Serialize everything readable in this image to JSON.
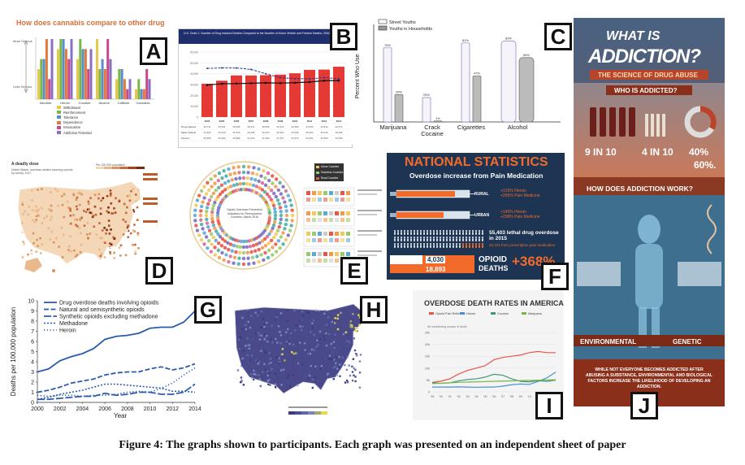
{
  "caption": "Figure 4: The graphs shown to participants. Each graph was presented on an independent sheet of paper",
  "panels": {
    "A": {
      "letter": "A",
      "title": "How does cannabis compare to other drugs?",
      "y_top": "More Serious",
      "y_bottom": "Less Serious",
      "categories": [
        "Nicotine",
        "Heroin",
        "Cocaine",
        "Alcohol",
        "Caffeine",
        "Cannabis"
      ],
      "legend": [
        "Withdrawal",
        "Reinforcement",
        "Tolerance",
        "Dependence",
        "Intoxication",
        "Addiction Potential"
      ],
      "colors": [
        "#e8c84a",
        "#7ab648",
        "#5b8ec9",
        "#e07b39",
        "#c94a8a",
        "#8a6fc4"
      ]
    },
    "B": {
      "letter": "B",
      "header": "U.S. Chart 1. Number of Drug Induced Deaths Compared to the Number of Motor Vehicle and Firearm Deaths, 2004 - 2013",
      "years": [
        "2004",
        "2005",
        "2006",
        "2007",
        "2008",
        "2009",
        "2010",
        "2011",
        "2012",
        "2013"
      ],
      "legend": [
        "Drug Induced",
        "Motor Vehicle",
        "Firearm"
      ],
      "colors": {
        "drug": "#e53935",
        "motor": "#1e3a8a",
        "firearm": "#111111"
      }
    },
    "C": {
      "letter": "C",
      "legend": [
        "Street Youths",
        "Youths in Households"
      ],
      "ylabel": "Percent Who Use",
      "categories": [
        "Marijuana",
        "Crack\nCocaine",
        "Cigarettes",
        "Alcohol"
      ]
    },
    "D": {
      "letter": "D",
      "title": "A deadly dose",
      "subtitle": "United States, overdose deaths involving opioids by county, 2017",
      "legend_title": "Per 100,000 population"
    },
    "E": {
      "letter": "E",
      "center_text": "Opioid Overdose Prevention Indicators for Pennsylvania Counties, March 2016",
      "legend": [
        "Urban Counties",
        "Suburban Counties",
        "Rural Counties"
      ]
    },
    "F": {
      "letter": "F",
      "title": "NATIONAL STATISTICS",
      "subtitle": "Overdose increase from Pain Medication",
      "rural_label": "RURAL",
      "rural_stats": "+315% Heroin\n+265% Pain Medicine",
      "urban_label": "URBAN",
      "urban_stats": "+145% Heroin\n+208% Pain Medicine",
      "lethal": "55,403 lethal drug overdose in 2015",
      "lethal_sub": "20,101 from prescription pain medication",
      "num1": "4,030",
      "num2": "18,893",
      "opioid": "OPIOID",
      "deaths": "DEATHS",
      "pct": "+368%"
    },
    "G": {
      "letter": "G",
      "ylabel": "Deaths per 100,000 population",
      "xlabel": "Year",
      "xticks": [
        "2000",
        "2002",
        "2004",
        "2006",
        "2008",
        "2010",
        "2012",
        "2014"
      ],
      "yticks": [
        "0",
        "1",
        "2",
        "3",
        "4",
        "5",
        "6",
        "7",
        "8",
        "9",
        "10"
      ],
      "legend": [
        "Drug overdose deaths involving opioids",
        "Natural and semisynthetic opioids",
        "Synthetic opioids excluding methadone",
        "Methadone",
        "Heroin"
      ]
    },
    "H": {
      "letter": "H"
    },
    "I": {
      "letter": "I",
      "title": "OVERDOSE DEATH RATES IN AMERICA",
      "legend": [
        "Opioid Pain Relievers",
        "Heroin",
        "Cocaine",
        "Marijuana"
      ],
      "colors": [
        "#e8564a",
        "#4a8fd8",
        "#3a9a7a",
        "#7ab648"
      ],
      "axis_note": "All contributing causes of death",
      "yticks": [
        "25k",
        "20k",
        "15k",
        "10k",
        "5k",
        "0"
      ],
      "xticks": [
        "'99",
        "'00",
        "'01",
        "'02",
        "'03",
        "'04",
        "'05",
        "'06",
        "'07",
        "'08",
        "'09",
        "'10",
        "'11",
        "'12",
        "'13"
      ]
    },
    "J": {
      "letter": "J",
      "title1": "WHAT IS",
      "title2": "ADDICTION?",
      "subtitle": "THE SCIENCE OF DRUG ABUSE",
      "who": "WHO IS ADDICTED?",
      "stat1": "9 IN 10",
      "stat2": "4 IN 10",
      "stat3": "40%",
      "stat4": "60%.",
      "how": "HOW DOES ADDICTION WORK?",
      "env": "ENVIRONMENTAL",
      "gen": "GENETIC",
      "footer": "WHILE NOT EVERYONE BECOMES ADDICTED AFTER ABUSING A SUBSTANCE, ENVIRONMENTAL AND BIOLOGICAL FACTORS INCREASE THE LIKELIHOOD OF DEVELOPING AN ADDICTION."
    }
  },
  "chart_data": [
    {
      "type": "bar",
      "title": "How does cannabis compare to other drugs?",
      "categories": [
        "Nicotine",
        "Heroin",
        "Cocaine",
        "Alcohol",
        "Caffeine",
        "Cannabis"
      ],
      "series": [
        {
          "name": "Withdrawal",
          "values": [
            3,
            5,
            4,
            6,
            2,
            1
          ]
        },
        {
          "name": "Reinforcement",
          "values": [
            4,
            6,
            6,
            3,
            3,
            2
          ]
        },
        {
          "name": "Tolerance",
          "values": [
            4,
            6,
            5,
            4,
            3,
            1
          ]
        },
        {
          "name": "Dependence",
          "values": [
            6,
            5,
            5,
            3,
            2,
            1
          ]
        },
        {
          "name": "Intoxication",
          "values": [
            2,
            4,
            3,
            6,
            1,
            3
          ]
        },
        {
          "name": "Addiction Potential",
          "values": [
            6,
            6,
            5,
            4,
            2,
            2
          ]
        }
      ],
      "ylim": [
        0,
        6
      ]
    },
    {
      "type": "bar",
      "title": "Number of Drug Induced Deaths Compared to the Number of Motor Vehicle and Firearm Deaths, 2004 - 2013",
      "categories": [
        "2004",
        "2005",
        "2006",
        "2007",
        "2008",
        "2009",
        "2010",
        "2011",
        "2012",
        "2013"
      ],
      "series": [
        {
          "name": "Drug Induced",
          "values": [
            30711,
            33541,
            38396,
            38371,
            38649,
            39147,
            40393,
            43544,
            43819,
            46471
          ]
        },
        {
          "name": "Motor Vehicle",
          "values": [
            44933,
            45343,
            45316,
            43945,
            39973,
            36361,
            35498,
            35303,
            36415,
            35369
          ]
        },
        {
          "name": "Firearm",
          "values": [
            29569,
            30694,
            30896,
            31224,
            31593,
            31347,
            31672,
            32351,
            33563,
            33636
          ]
        }
      ],
      "ylim": [
        0,
        60000
      ]
    },
    {
      "type": "bar",
      "categories": [
        "Marijuana",
        "Crack Cocaine",
        "Cigarettes",
        "Alcohol"
      ],
      "series": [
        {
          "name": "Street Youths",
          "values": [
            76,
            25,
            81,
            83
          ]
        },
        {
          "name": "Youths in Households",
          "values": [
            28,
            1,
            47,
            66
          ]
        }
      ],
      "ylabel": "Percent Who Use",
      "ylim": [
        0,
        100
      ]
    },
    {
      "type": "line",
      "x": [
        2000,
        2001,
        2002,
        2003,
        2004,
        2005,
        2006,
        2007,
        2008,
        2009,
        2010,
        2011,
        2012,
        2013,
        2014
      ],
      "series": [
        {
          "name": "Drug overdose deaths involving opioids",
          "values": [
            3.0,
            3.3,
            4.1,
            4.5,
            4.8,
            5.3,
            6.2,
            6.5,
            6.6,
            6.8,
            7.3,
            7.4,
            7.4,
            7.9,
            9.0
          ]
        },
        {
          "name": "Natural and semisynthetic opioids",
          "values": [
            1.0,
            1.2,
            1.5,
            1.9,
            2.1,
            2.3,
            2.7,
            2.9,
            3.0,
            3.0,
            3.3,
            3.5,
            3.2,
            3.4,
            3.8
          ]
        },
        {
          "name": "Synthetic opioids excluding methadone",
          "values": [
            0.3,
            0.3,
            0.4,
            0.5,
            0.6,
            0.6,
            0.9,
            0.7,
            0.8,
            1.0,
            1.0,
            0.8,
            0.8,
            1.0,
            1.8
          ]
        },
        {
          "name": "Methadone",
          "values": [
            0.3,
            0.5,
            0.8,
            1.0,
            1.2,
            1.5,
            1.8,
            1.8,
            1.7,
            1.6,
            1.5,
            1.4,
            1.1,
            1.1,
            1.0
          ]
        },
        {
          "name": "Heroin",
          "values": [
            0.7,
            0.6,
            0.7,
            0.7,
            0.6,
            0.7,
            0.7,
            0.8,
            1.0,
            1.1,
            1.0,
            1.4,
            1.9,
            2.7,
            3.4
          ]
        }
      ],
      "xlabel": "Year",
      "ylabel": "Deaths per 100,000 population",
      "ylim": [
        0,
        10
      ]
    },
    {
      "type": "line",
      "title": "OVERDOSE DEATH RATES IN AMERICA",
      "x": [
        "'99",
        "'00",
        "'01",
        "'02",
        "'03",
        "'04",
        "'05",
        "'06",
        "'07",
        "'08",
        "'09",
        "'10",
        "'11",
        "'12",
        "'13"
      ],
      "series": [
        {
          "name": "Opioid Pain Relievers",
          "values": [
            4,
            4.5,
            5.5,
            7.5,
            9,
            10,
            11,
            13.5,
            14.5,
            15,
            15.5,
            16.5,
            17,
            16.5,
            16.5
          ]
        },
        {
          "name": "Heroin",
          "values": [
            2,
            2,
            2,
            2.1,
            2,
            1.9,
            2,
            2,
            2.4,
            3,
            3.3,
            3.1,
            4.4,
            5.9,
            8.3
          ]
        },
        {
          "name": "Cocaine",
          "values": [
            3.8,
            3.6,
            3.8,
            4.6,
            5.2,
            5.5,
            6.2,
            7.4,
            7,
            5.5,
            4.4,
            4.2,
            4.7,
            4.4,
            4.9
          ]
        },
        {
          "name": "Marijuana",
          "values": [
            3.5,
            3.6,
            3.8,
            4,
            4.1,
            4.2,
            4.3,
            4.4,
            4.5,
            4.6,
            4.7,
            4.8,
            4.9,
            5,
            5.1
          ]
        }
      ],
      "ylim": [
        0,
        25
      ]
    }
  ]
}
